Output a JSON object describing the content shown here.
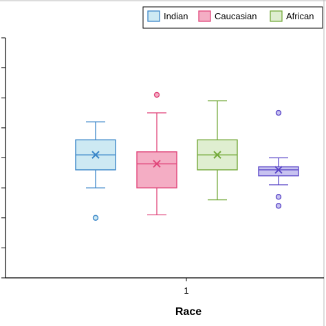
{
  "chart_data": {
    "type": "boxplot",
    "title": "",
    "xlabel": "Race",
    "ylabel": "",
    "x_tick_labels": [
      "1"
    ],
    "y_ticks": [
      0,
      1,
      2,
      3,
      4,
      5,
      6,
      7,
      8
    ],
    "ylim": [
      0,
      8
    ],
    "grid": false,
    "legend": {
      "position": "top-right",
      "entries": [
        "Indian",
        "Caucasian",
        "African"
      ]
    },
    "series": [
      {
        "name": "Indian",
        "color": "#3a86c8",
        "fill": "#cde9f3",
        "min": 3.0,
        "q1": 3.6,
        "median": 4.1,
        "mean": 4.1,
        "q3": 4.6,
        "max": 5.2,
        "outliers": [
          2.0
        ]
      },
      {
        "name": "Caucasian",
        "color": "#e0457a",
        "fill": "#f4adc4",
        "min": 2.1,
        "q1": 3.0,
        "median": 3.8,
        "mean": 3.8,
        "q3": 4.2,
        "max": 5.5,
        "outliers": [
          6.1
        ]
      },
      {
        "name": "African",
        "color": "#74a93a",
        "fill": "#dfeed0",
        "min": 2.6,
        "q1": 3.6,
        "median": 4.1,
        "mean": 4.1,
        "q3": 4.6,
        "max": 5.9,
        "outliers": []
      },
      {
        "name": "",
        "color": "#5b47c8",
        "fill": "#c7c2f0",
        "min": 3.1,
        "q1": 3.4,
        "median": 3.6,
        "mean": 3.6,
        "q3": 3.7,
        "max": 4.0,
        "outliers": [
          5.5,
          2.7,
          2.4
        ]
      }
    ]
  }
}
